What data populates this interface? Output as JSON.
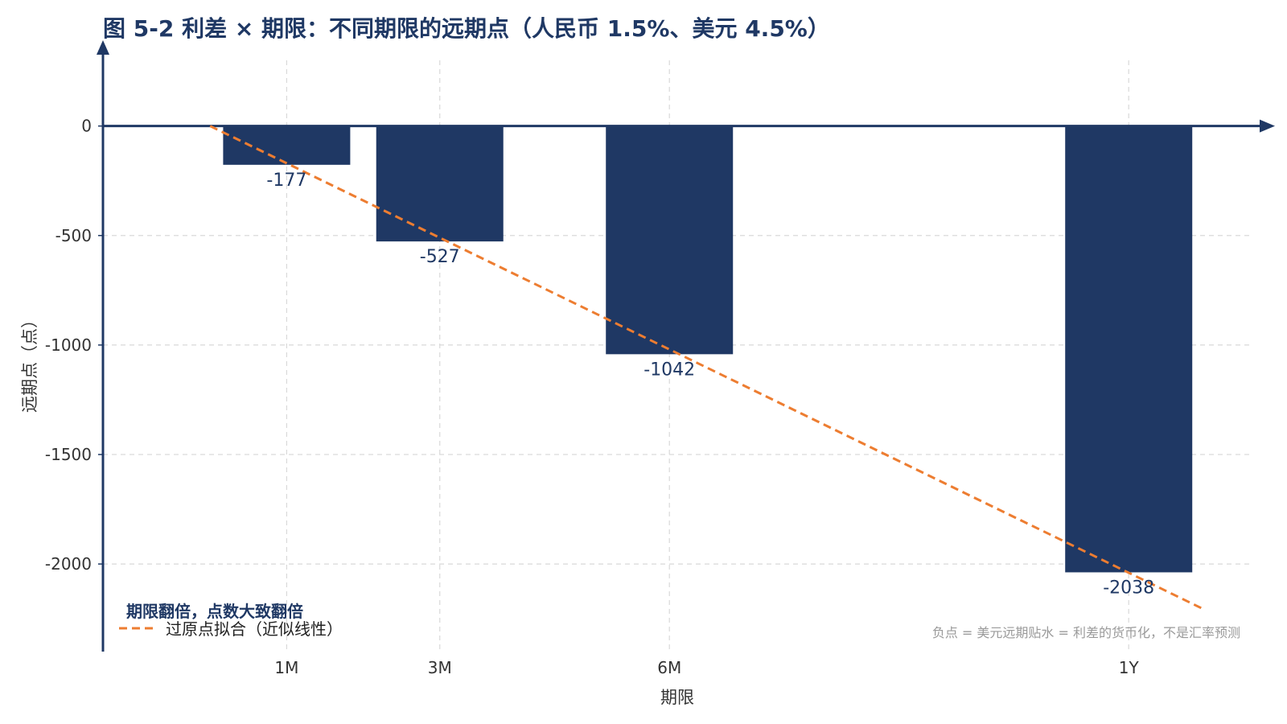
{
  "chart_data": {
    "type": "bar",
    "title": "图 5-2 利差 × 期限：不同期限的远期点（人民币 1.5%、美元 4.5%）",
    "xlabel": "期限",
    "ylabel": "远期点（点）",
    "categories": [
      "1M",
      "3M",
      "6M",
      "1Y"
    ],
    "x_months": [
      1,
      3,
      6,
      12
    ],
    "values": [
      -177,
      -527,
      -1042,
      -2038
    ],
    "data_labels": [
      "-177",
      "-527",
      "-1042",
      "-2038"
    ],
    "ylim": [
      -2400,
      300
    ],
    "xlim": [
      -1.4,
      13.7
    ],
    "yticks": [
      0,
      -500,
      -1000,
      -1500,
      -2000
    ],
    "ytick_labels": [
      "0",
      "-500",
      "-1000",
      "-1500",
      "-2000"
    ],
    "grid": true,
    "fit_line": {
      "label": "过原点拟合（近似线性）",
      "slope_per_month": -170,
      "x_range": [
        0,
        13
      ]
    },
    "annotation": "期限翻倍，点数大致翻倍",
    "footnote": "负点 = 美元远期贴水 = 利差的货币化，不是汇率预测",
    "legend_position": "lower-left",
    "colors": {
      "bar": "#1f3864",
      "fit_line": "#ed7d31",
      "axis": "#1f3864",
      "grid": "#d9d9d9",
      "footnote": "#9a9a9a"
    }
  }
}
